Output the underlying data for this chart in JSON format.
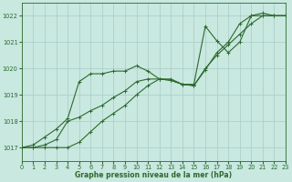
{
  "title": "Graphe pression niveau de la mer (hPa)",
  "bg_color": "#c8e8e0",
  "line_color": "#2d6a2d",
  "grid_color": "#a8ccc8",
  "xlim": [
    0,
    23
  ],
  "ylim": [
    1016.5,
    1022.5
  ],
  "yticks": [
    1017,
    1018,
    1019,
    1020,
    1021,
    1022
  ],
  "xticks": [
    0,
    1,
    2,
    3,
    4,
    5,
    6,
    7,
    8,
    9,
    10,
    11,
    12,
    13,
    14,
    15,
    16,
    17,
    18,
    19,
    20,
    21,
    22,
    23
  ],
  "series1": [
    1017.0,
    1017.1,
    1017.4,
    1017.7,
    1018.1,
    1019.5,
    1019.8,
    1019.8,
    1019.9,
    1019.9,
    1020.1,
    1019.9,
    1019.6,
    1019.6,
    1019.4,
    1019.4,
    1021.6,
    1021.05,
    1020.6,
    1021.0,
    1022.0,
    1022.1,
    1022.0,
    1022.0
  ],
  "series2": [
    1017.0,
    1017.0,
    1017.1,
    1017.3,
    1018.0,
    1018.15,
    1018.4,
    1018.6,
    1018.9,
    1019.15,
    1019.5,
    1019.6,
    1019.6,
    1019.55,
    1019.4,
    1019.35,
    1019.95,
    1020.6,
    1021.0,
    1021.7,
    1022.0,
    1022.0,
    1022.0,
    1022.0
  ],
  "series3": [
    1017.0,
    1017.0,
    1017.0,
    1017.0,
    1017.0,
    1017.2,
    1017.6,
    1018.0,
    1018.3,
    1018.6,
    1019.0,
    1019.35,
    1019.6,
    1019.55,
    1019.4,
    1019.35,
    1020.0,
    1020.5,
    1020.9,
    1021.3,
    1021.7,
    1022.0,
    1022.0,
    1022.0
  ],
  "marker": "+",
  "markersize": 3.0,
  "linewidth": 0.8,
  "tick_fontsize": 4.8,
  "xlabel_fontsize": 5.5,
  "fig_width": 3.2,
  "fig_height": 2.0,
  "dpi": 100
}
